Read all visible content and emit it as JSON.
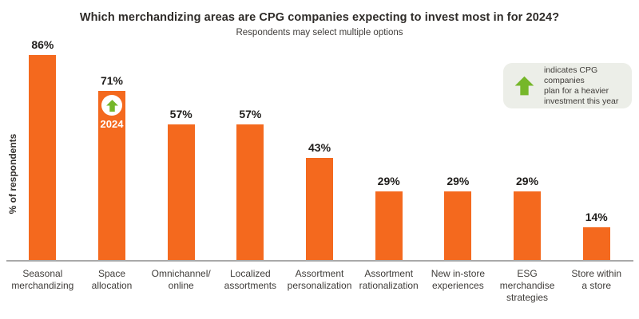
{
  "header": {
    "title": "Which merchandizing areas are CPG companies expecting to invest most in for 2024?",
    "subtitle": "Respondents may select multiple options"
  },
  "legend": {
    "icon": "up-arrow-icon",
    "text": "indicates CPG companies\nplan for a heavier\ninvestment this year"
  },
  "colors": {
    "bar_orange": "#F4691E",
    "arrow_green": "#76B72A",
    "legend_bg": "#ECEEE8",
    "title_text": "#2E2B28",
    "body_text": "#3F3C39",
    "axis_line": "#A9A9A9",
    "badge_circle": "#FFFFFF",
    "badge_year_text": "#FFFFFF"
  },
  "chart_data": {
    "type": "bar",
    "title": "Which merchandizing areas are CPG companies expecting to invest most in for 2024?",
    "subtitle": "Respondents may select multiple options",
    "xlabel": "",
    "ylabel": "% of respondents",
    "ylim": [
      0,
      100
    ],
    "grid": false,
    "legend_position": "top-right",
    "bar_color": "#F4691E",
    "categories": [
      "Seasonal merchandizing",
      "Space allocation",
      "Omnichannel/online",
      "Localized assortments",
      "Assortment personalization",
      "Assortment rationalization",
      "New in-store experiences",
      "ESG merchandise strategies",
      "Store within a store"
    ],
    "category_lines": [
      "Seasonal\nmerchandizing",
      "Space\nallocation",
      "Omnichannel/\nonline",
      "Localized\nassortments",
      "Assortment\npersonalization",
      "Assortment\nrationalization",
      "New in-store\nexperiences",
      "ESG\nmerchandise\nstrategies",
      "Store within\na store"
    ],
    "values": [
      86,
      71,
      57,
      57,
      43,
      29,
      29,
      29,
      14
    ],
    "value_labels": [
      "86%",
      "71%",
      "57%",
      "57%",
      "43%",
      "29%",
      "29%",
      "29%",
      "14%"
    ],
    "badge": {
      "index": 1,
      "label": "2024"
    }
  }
}
